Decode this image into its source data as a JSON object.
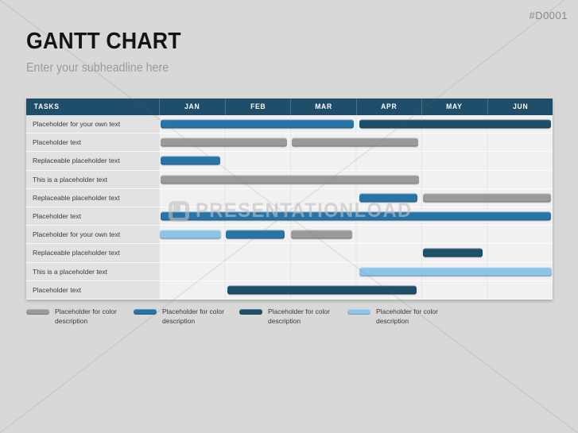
{
  "page": {
    "doc_code": "#D0001",
    "title": "GANTT CHART",
    "subtitle": "Enter your subheadline here"
  },
  "colors": {
    "page_bg": "#D8D8D8",
    "header_bg": "#1F4E6B",
    "bar_colors": {
      "gray": "#9A9A9A",
      "blue": "#2874A8",
      "dark": "#1F4E68",
      "light": "#8FC4E9"
    }
  },
  "chart_data": {
    "type": "gantt",
    "title": "GANTT CHART",
    "tasks_header": "TASKS",
    "columns": [
      "JAN",
      "FEB",
      "MAR",
      "APR",
      "MAY",
      "JUN"
    ],
    "axis_range_months": [
      0,
      6
    ],
    "grid": true,
    "rows": [
      {
        "label": "Placeholder for your own text",
        "bars": [
          {
            "color": "blue",
            "start": 0.02,
            "end": 2.97
          },
          {
            "color": "dark",
            "start": 3.05,
            "end": 5.98
          }
        ]
      },
      {
        "label": "Placeholder text",
        "bars": [
          {
            "color": "gray",
            "start": 0.02,
            "end": 1.95
          },
          {
            "color": "gray",
            "start": 2.03,
            "end": 3.95
          }
        ]
      },
      {
        "label": "Replaceable placeholder text",
        "bars": [
          {
            "color": "blue",
            "start": 0.02,
            "end": 0.93
          }
        ]
      },
      {
        "label": "This is a placeholder text",
        "bars": [
          {
            "color": "gray",
            "start": 0.02,
            "end": 3.96
          }
        ]
      },
      {
        "label": "Replaceable placeholder text",
        "bars": [
          {
            "color": "blue",
            "start": 3.05,
            "end": 3.94
          },
          {
            "color": "gray",
            "start": 4.03,
            "end": 5.98
          }
        ]
      },
      {
        "label": "Placeholder text",
        "bars": [
          {
            "color": "blue",
            "start": 0.02,
            "end": 5.98
          }
        ]
      },
      {
        "label": "Placeholder for your own text",
        "bars": [
          {
            "color": "light",
            "start": 0.01,
            "end": 0.95
          },
          {
            "color": "blue",
            "start": 1.02,
            "end": 1.91
          },
          {
            "color": "gray",
            "start": 2.01,
            "end": 2.94
          }
        ]
      },
      {
        "label": "Replaceable placeholder text",
        "bars": [
          {
            "color": "dark",
            "start": 4.03,
            "end": 4.93
          }
        ]
      },
      {
        "label": "This is a placeholder text",
        "bars": [
          {
            "color": "light",
            "start": 3.05,
            "end": 5.99
          }
        ]
      },
      {
        "label": "Placeholder text",
        "bars": [
          {
            "color": "dark",
            "start": 1.04,
            "end": 3.93
          }
        ]
      }
    ]
  },
  "legend": {
    "items": [
      {
        "color": "gray",
        "label": "Placeholder for color description"
      },
      {
        "color": "blue",
        "label": "Placeholder for color description"
      },
      {
        "color": "dark",
        "label": "Placeholder for color description"
      },
      {
        "color": "light",
        "label": "Placeholder for color description"
      }
    ]
  },
  "watermark": {
    "text": "PRESENTATIONLOAD"
  }
}
